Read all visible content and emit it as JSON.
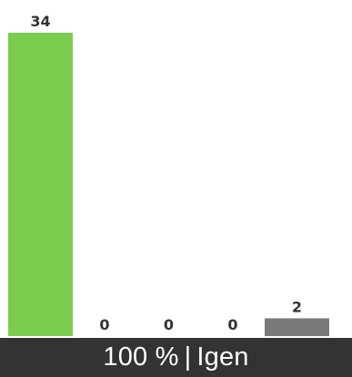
{
  "chart_data": {
    "type": "bar",
    "values": [
      34,
      0,
      0,
      0,
      2
    ],
    "value_labels": [
      "34",
      "0",
      "0",
      "0",
      "2"
    ],
    "ylim": [
      0,
      34
    ],
    "colors": [
      "#7bcd4f",
      "#7a7a7a",
      "#7a7a7a",
      "#7a7a7a",
      "#7a7a7a"
    ],
    "label_color": "#333333"
  },
  "footer": {
    "percent": "100 %",
    "separator": "|",
    "label": "Igen",
    "background": "#333333",
    "text_color": "#ffffff"
  }
}
